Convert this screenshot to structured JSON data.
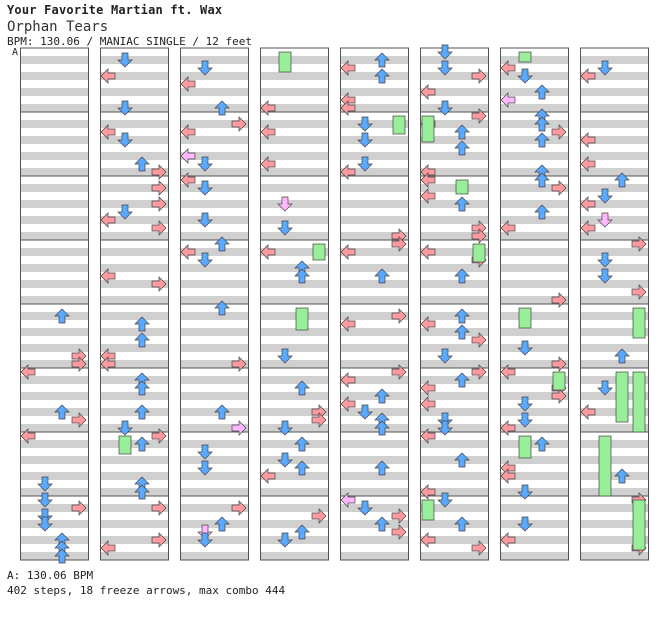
{
  "header": {
    "title": "Your Favorite Martian ft. Wax",
    "song": "Orphan Tears",
    "info": "BPM: 130.06 / MANIAC SINGLE / 12 feet",
    "marker": "A"
  },
  "footer": {
    "bpm": "A: 130.06 BPM",
    "stats": "402 steps, 18 freeze arrows, max combo 444"
  },
  "colors": {
    "stripe_gray": "#d0d0d0",
    "left_right": "#ff9aa0",
    "up_down": "#5aa8ff",
    "special": "#ffb8ff",
    "freeze": "#99ee99"
  },
  "chart": {
    "columns": 8,
    "measures_per_column": 8
  }
}
